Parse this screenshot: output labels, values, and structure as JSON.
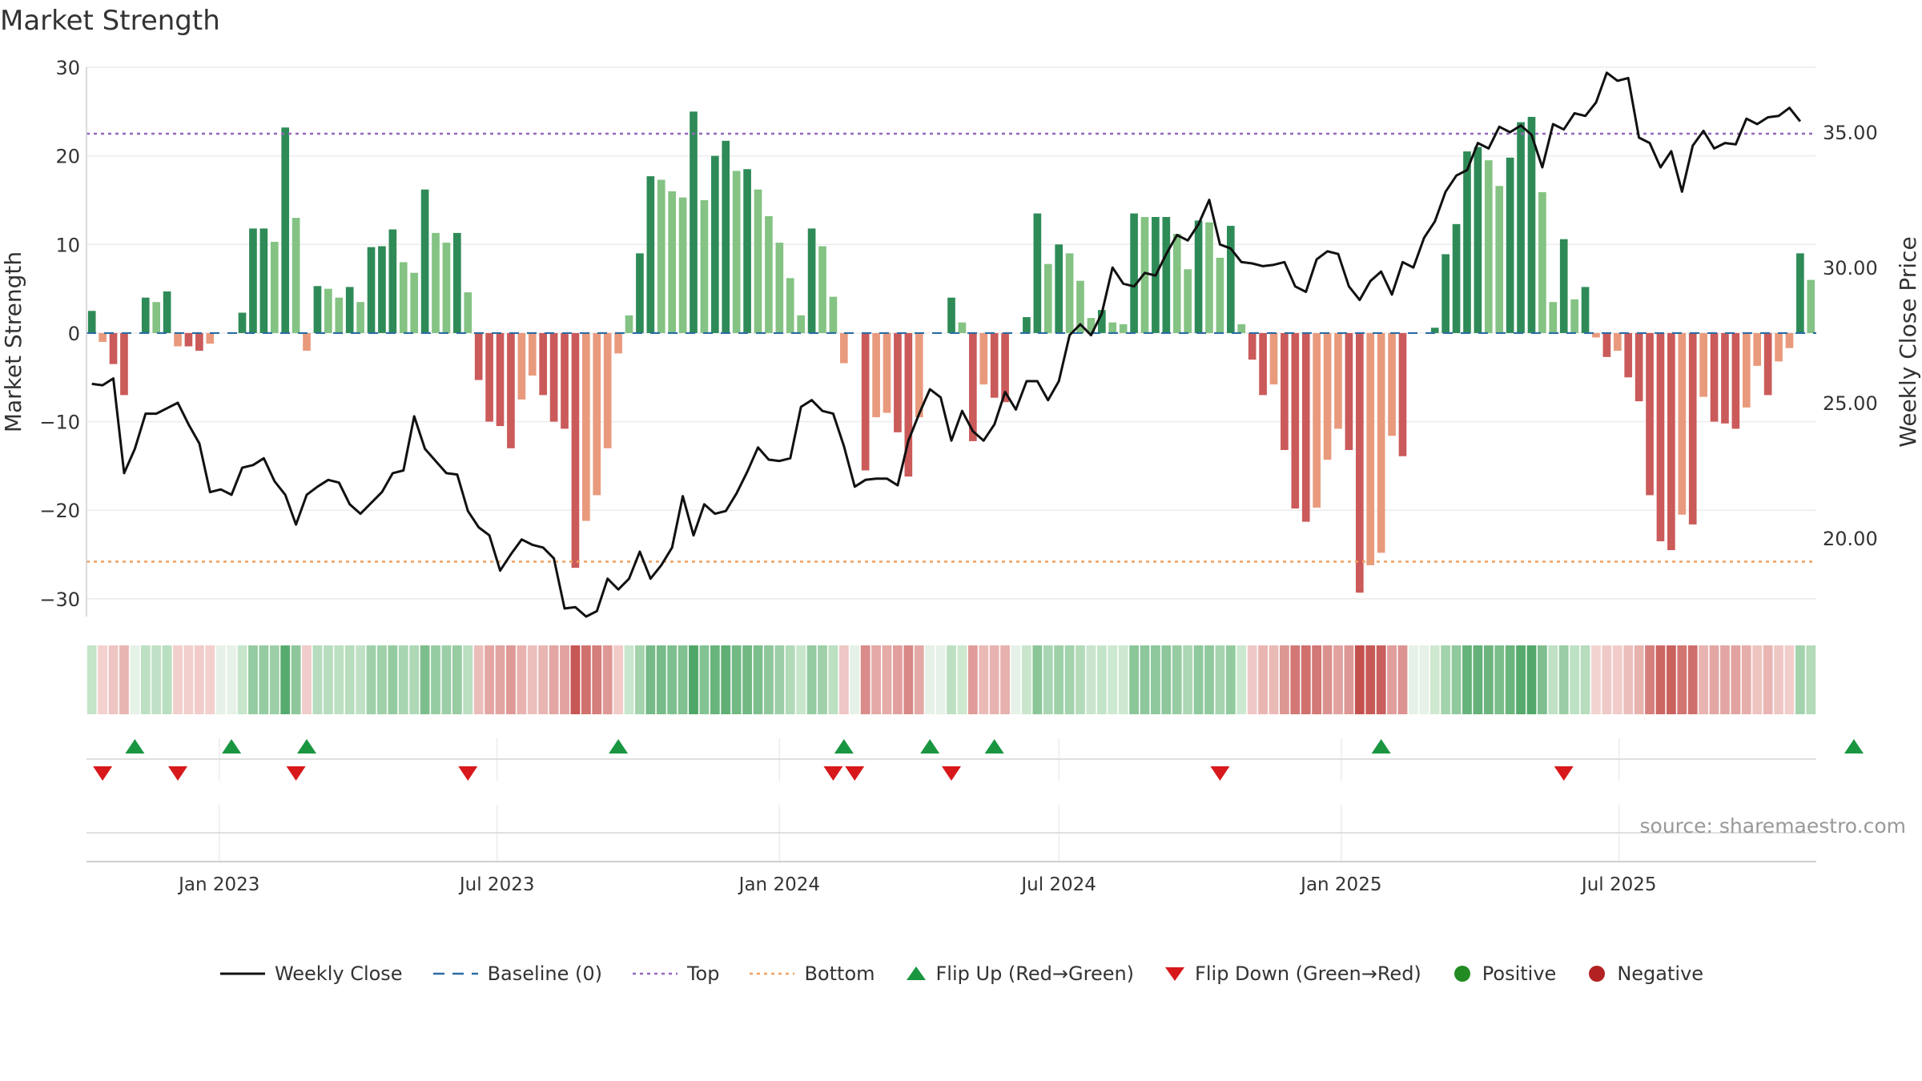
{
  "chart_data": {
    "type": "bar",
    "title": "Market Strength",
    "ylabel": "Market Strength",
    "y2label": "Weekly Close Price",
    "ylim": [
      -32,
      30
    ],
    "y2lim": [
      17.1,
      37.4
    ],
    "yticks": [
      30,
      20,
      10,
      0,
      -10,
      -20,
      -30
    ],
    "yticklabels": [
      "30",
      "20",
      "10",
      "0",
      "−10",
      "−20",
      "−30"
    ],
    "y2ticks": [
      35,
      30,
      25,
      20
    ],
    "y2ticklabels": [
      "35.00",
      "30.00",
      "25.00",
      "20.00"
    ],
    "top_level": 22.5,
    "bottom_level": -25.8,
    "x_start": "2022-10-10",
    "x_step_days": 7,
    "xticks": [
      {
        "date": "2023-01-01",
        "label": "Jan 2023"
      },
      {
        "date": "2023-07-01",
        "label": "Jul 2023"
      },
      {
        "date": "2024-01-01",
        "label": "Jan 2024"
      },
      {
        "date": "2024-07-01",
        "label": "Jul 2024"
      },
      {
        "date": "2025-01-01",
        "label": "Jan 2025"
      },
      {
        "date": "2025-07-01",
        "label": "Jul 2025"
      }
    ],
    "series": [
      {
        "name": "Market Strength",
        "values": [
          2.5,
          -1,
          -3.5,
          -7,
          0,
          4,
          3.5,
          4.7,
          -1.5,
          -1.5,
          -2,
          -1.2,
          0,
          0,
          2.3,
          11.8,
          11.8,
          10.3,
          23.2,
          13,
          -2,
          5.3,
          5,
          4,
          5.2,
          3.5,
          9.7,
          9.8,
          11.7,
          8,
          6.8,
          16.2,
          11.3,
          10.2,
          11.3,
          4.6,
          -5.3,
          -10,
          -10.5,
          -13,
          -7.5,
          -4.8,
          -7,
          -10,
          -10.8,
          -26.5,
          -21.2,
          -18.3,
          -13,
          -2.3,
          2,
          9,
          17.7,
          17.3,
          16,
          15.3,
          25,
          15,
          20,
          21.7,
          18.3,
          18.5,
          16.2,
          13.2,
          10.2,
          6.2,
          2,
          11.8,
          9.8,
          4.1,
          -3.4,
          0,
          -15.5,
          -9.5,
          -9,
          -11.2,
          -16.2,
          -9.5,
          0,
          0,
          4,
          1.2,
          -12.2,
          -5.8,
          -7.3,
          -7.8,
          0,
          1.8,
          13.5,
          7.8,
          10,
          9,
          5.9,
          1.7,
          2.6,
          1.2,
          1,
          13.5,
          13.1,
          13.1,
          13.1,
          11.2,
          7.2,
          12.7,
          12.5,
          8.5,
          12.1,
          1,
          -3,
          -7,
          -5.8,
          -13.2,
          -19.8,
          -21.3,
          -19.7,
          -14.3,
          -10.8,
          -13.2,
          -29.3,
          -26.2,
          -24.8,
          -11.6,
          -13.9,
          0,
          0,
          0.6,
          8.9,
          12.3,
          20.5,
          21,
          19.5,
          16.6,
          19.8,
          23.8,
          24.4,
          15.9,
          3.5,
          10.6,
          3.8,
          5.2,
          -0.5,
          -2.7,
          -2,
          -5,
          -7.7,
          -18.3,
          -23.5,
          -24.5,
          -20.5,
          -21.6,
          -7.2,
          -10,
          -10.2,
          -10.8,
          -8.4,
          -3.7,
          -7,
          -3.2,
          -1.7,
          9,
          6
        ]
      },
      {
        "name": "Weekly Close",
        "values": [
          25.7,
          25.65,
          25.9,
          22.4,
          23.3,
          24.6,
          24.6,
          24.8,
          25,
          24.2,
          23.5,
          21.7,
          21.8,
          21.6,
          22.6,
          22.7,
          22.95,
          22.1,
          21.6,
          20.5,
          21.6,
          21.9,
          22.15,
          22.05,
          21.25,
          20.9,
          21.3,
          21.7,
          22.4,
          22.5,
          24.5,
          23.3,
          22.85,
          22.4,
          22.35,
          21,
          20.4,
          20.1,
          18.8,
          19.4,
          19.95,
          19.75,
          19.65,
          19.25,
          17.4,
          17.45,
          17.1,
          17.3,
          18.5,
          18.1,
          18.5,
          19.5,
          18.5,
          19,
          19.65,
          21.55,
          20.1,
          21.25,
          20.9,
          21,
          21.65,
          22.45,
          23.35,
          22.9,
          22.85,
          22.95,
          24.85,
          25.1,
          24.7,
          24.6,
          23.4,
          21.9,
          22.15,
          22.2,
          22.2,
          21.95,
          23.6,
          24.6,
          25.5,
          25.2,
          23.6,
          24.7,
          23.95,
          23.6,
          24.2,
          25.4,
          24.75,
          25.8,
          25.8,
          25.1,
          25.8,
          27.5,
          27.9,
          27.5,
          28.3,
          30,
          29.4,
          29.3,
          29.8,
          29.7,
          30.5,
          31.2,
          31,
          31.6,
          32.5,
          30.85,
          30.7,
          30.2,
          30.15,
          30.05,
          30.1,
          30.2,
          29.3,
          29.1,
          30.3,
          30.6,
          30.5,
          29.3,
          28.8,
          29.5,
          29.85,
          29,
          30.2,
          30,
          31.1,
          31.7,
          32.8,
          33.4,
          33.6,
          34.6,
          34.4,
          35.2,
          35,
          35.25,
          34.9,
          33.7,
          35.3,
          35.1,
          35.7,
          35.6,
          36.1,
          37.2,
          36.9,
          37,
          34.8,
          34.6,
          33.7,
          34.3,
          32.8,
          34.5,
          35.05,
          34.4,
          34.6,
          34.55,
          35.5,
          35.3,
          35.55,
          35.6,
          35.9,
          35.4
        ]
      },
      {
        "name": "Baseline (0)",
        "values": [
          0
        ]
      },
      {
        "name": "Top",
        "values": [
          22.5
        ]
      },
      {
        "name": "Bottom",
        "values": [
          -25.8
        ]
      }
    ],
    "flip_up": [
      4,
      13,
      20,
      49,
      70,
      78,
      84,
      120,
      164
    ],
    "flip_down": [
      1,
      8,
      19,
      35,
      69,
      71,
      80,
      105,
      137
    ],
    "annotation": "source: sharemaestro.com",
    "legend": [
      {
        "label": "Weekly Close",
        "symbol": "line"
      },
      {
        "label": "Baseline (0)",
        "symbol": "dash"
      },
      {
        "label": "Top",
        "symbol": "dot-purple"
      },
      {
        "label": "Bottom",
        "symbol": "dot-orange"
      },
      {
        "label": "Flip Up (Red→Green)",
        "symbol": "tri-up"
      },
      {
        "label": "Flip Down (Green→Red)",
        "symbol": "tri-down"
      },
      {
        "label": "Positive",
        "symbol": "circle-green"
      },
      {
        "label": "Negative",
        "symbol": "circle-red"
      }
    ],
    "legend_position": "bottom-center"
  },
  "colors": {
    "pos_dark": "#2e8b57",
    "pos_light": "#84c383",
    "neg_dark": "#cb5a5a",
    "neg_light": "#e99a7d",
    "close_line": "#111111",
    "baseline": "#2b6ca3",
    "top_line": "#9467bd",
    "bottom_line": "#f0a060",
    "flip_up": "#1a9641",
    "flip_down": "#d7191c",
    "positive": "#228b22",
    "negative": "#b22222"
  }
}
